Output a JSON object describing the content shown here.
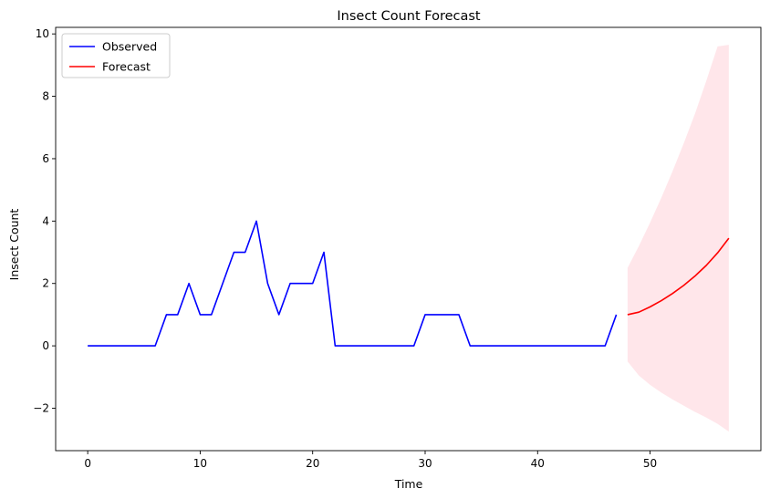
{
  "chart_data": {
    "type": "line",
    "title": "Insect Count Forecast",
    "xlabel": "Time",
    "ylabel": "Insect Count",
    "xlim": [
      -2.85,
      59.85
    ],
    "ylim": [
      -3.36,
      10.21
    ],
    "xticks": [
      0,
      10,
      20,
      30,
      40,
      50
    ],
    "yticks": [
      -2,
      0,
      2,
      4,
      6,
      8,
      10
    ],
    "ytick_labels": [
      "−2",
      "0",
      "2",
      "4",
      "6",
      "8",
      "10"
    ],
    "grid": false,
    "legend_position": "top-left",
    "series": [
      {
        "name": "Observed",
        "color": "#0000ff",
        "x": [
          0,
          1,
          2,
          3,
          4,
          5,
          6,
          7,
          8,
          9,
          10,
          11,
          12,
          13,
          14,
          15,
          16,
          17,
          18,
          19,
          20,
          21,
          22,
          23,
          24,
          25,
          26,
          27,
          28,
          29,
          30,
          31,
          32,
          33,
          34,
          35,
          36,
          37,
          38,
          39,
          40,
          41,
          42,
          43,
          44,
          45,
          46,
          47
        ],
        "values": [
          0,
          0,
          0,
          0,
          0,
          0,
          0,
          1,
          1,
          2,
          1,
          1,
          2,
          3,
          3,
          4,
          2,
          1,
          2,
          2,
          2,
          3,
          0,
          0,
          0,
          0,
          0,
          0,
          0,
          0,
          1,
          1,
          1,
          1,
          0,
          0,
          0,
          0,
          0,
          0,
          0,
          0,
          0,
          0,
          0,
          0,
          0,
          1
        ]
      },
      {
        "name": "Forecast",
        "color": "#ff0000",
        "x": [
          48,
          49,
          50,
          51,
          52,
          53,
          54,
          55,
          56,
          57
        ],
        "values": [
          1.0,
          1.08,
          1.25,
          1.45,
          1.68,
          1.94,
          2.24,
          2.58,
          2.98,
          3.45
        ]
      }
    ],
    "confidence_band": {
      "color": "#ffc0cb",
      "x": [
        48,
        49,
        50,
        51,
        52,
        53,
        54,
        55,
        56,
        57
      ],
      "lower": [
        -0.5,
        -0.95,
        -1.25,
        -1.5,
        -1.72,
        -1.92,
        -2.12,
        -2.3,
        -2.5,
        -2.75
      ],
      "upper": [
        2.5,
        3.2,
        3.95,
        4.75,
        5.6,
        6.5,
        7.45,
        8.5,
        9.6,
        9.65
      ]
    }
  }
}
